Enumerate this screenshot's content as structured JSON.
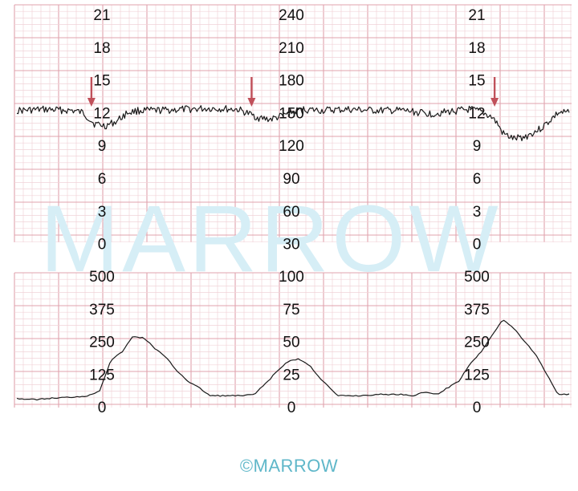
{
  "chart_data": [
    {
      "type": "line",
      "panel": "fetal-heart-rate",
      "grid": true,
      "scale_columns": [
        {
          "ticks": [
            "21",
            "18",
            "15",
            "12",
            "9",
            "6",
            "3",
            "0"
          ]
        },
        {
          "ticks": [
            "240",
            "210",
            "180",
            "150",
            "120",
            "90",
            "60",
            "30"
          ]
        },
        {
          "ticks": [
            "21",
            "18",
            "15",
            "12",
            "9",
            "6",
            "3",
            "0"
          ]
        }
      ],
      "ylim": [
        30,
        240
      ],
      "xlim": [
        0,
        100
      ],
      "series": [
        {
          "x": [
            0,
            5,
            10,
            12,
            14,
            16,
            18,
            20,
            22,
            25,
            30,
            35,
            40,
            42,
            44,
            46,
            48,
            50,
            52,
            55,
            60,
            65,
            70,
            73,
            75,
            80,
            82,
            84,
            86,
            87,
            88,
            90,
            92,
            95,
            98,
            100
          ],
          "values": [
            152,
            153,
            152,
            150,
            140,
            138,
            142,
            150,
            152,
            152,
            153,
            154,
            153,
            149,
            145,
            144,
            147,
            151,
            153,
            152,
            153,
            152,
            152,
            150,
            149,
            152,
            153,
            151,
            146,
            140,
            131,
            126,
            128,
            136,
            150,
            150
          ]
        }
      ],
      "arrows_at_x": [
        13.5,
        42.5,
        86.5
      ],
      "arrow_color": "#c0505a"
    },
    {
      "type": "line",
      "panel": "uterine-activity",
      "grid": true,
      "scale_columns": [
        {
          "ticks": [
            "500",
            "375",
            "250",
            "125",
            "0"
          ]
        },
        {
          "ticks": [
            "100",
            "75",
            "50",
            "25",
            "0"
          ]
        },
        {
          "ticks": [
            "500",
            "375",
            "250",
            "125",
            "0"
          ]
        }
      ],
      "ylim": [
        0,
        100
      ],
      "xlim": [
        0,
        100
      ],
      "series": [
        {
          "x": [
            0,
            3,
            6,
            10,
            13,
            15,
            17,
            19,
            21,
            23,
            25,
            27,
            29,
            31,
            33,
            35,
            38,
            41,
            43,
            45,
            47,
            49,
            51,
            53,
            55,
            58,
            62,
            66,
            70,
            72,
            74,
            76,
            78,
            80,
            82,
            84,
            86,
            88,
            90,
            92,
            94,
            96,
            98,
            100
          ],
          "values": [
            7,
            6,
            7,
            8,
            9,
            13,
            36,
            42,
            54,
            53,
            45,
            38,
            28,
            20,
            15,
            9,
            9,
            9,
            10,
            18,
            27,
            35,
            37,
            32,
            22,
            9,
            9,
            10,
            10,
            9,
            12,
            10,
            15,
            20,
            33,
            42,
            55,
            67,
            60,
            50,
            40,
            25,
            10,
            10
          ]
        }
      ]
    }
  ],
  "watermark": "MARROW",
  "footer": {
    "text": "©MARROW"
  },
  "colors": {
    "grid_major": "#e0a3ad",
    "grid_minor": "#f1d3d8",
    "trace": "#1a1a1a",
    "arrow": "#c0505a",
    "watermark": "#d6eef6",
    "footer": "#5fb7c9"
  }
}
